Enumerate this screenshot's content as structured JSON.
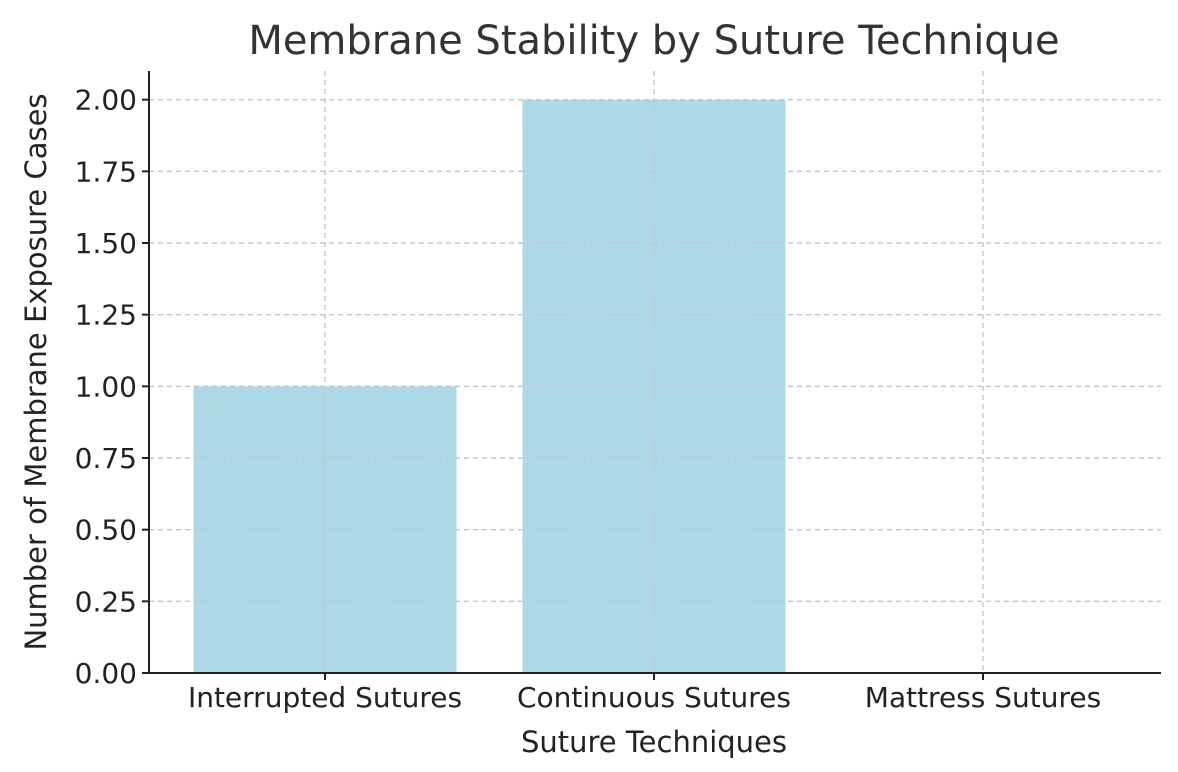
{
  "chart_data": {
    "type": "bar",
    "title": "Membrane Stability by Suture Technique",
    "xlabel": "Suture Techniques",
    "ylabel": "Number of Membrane Exposure Cases",
    "categories": [
      "Interrupted Sutures",
      "Continuous Sutures",
      "Mattress Sutures"
    ],
    "values": [
      1,
      2,
      0
    ],
    "ylim": [
      0,
      2.1
    ],
    "yticks": [
      "0.00",
      "0.25",
      "0.50",
      "0.75",
      "1.00",
      "1.25",
      "1.50",
      "1.75",
      "2.00"
    ],
    "grid": true,
    "bar_color": "#add8e6"
  }
}
